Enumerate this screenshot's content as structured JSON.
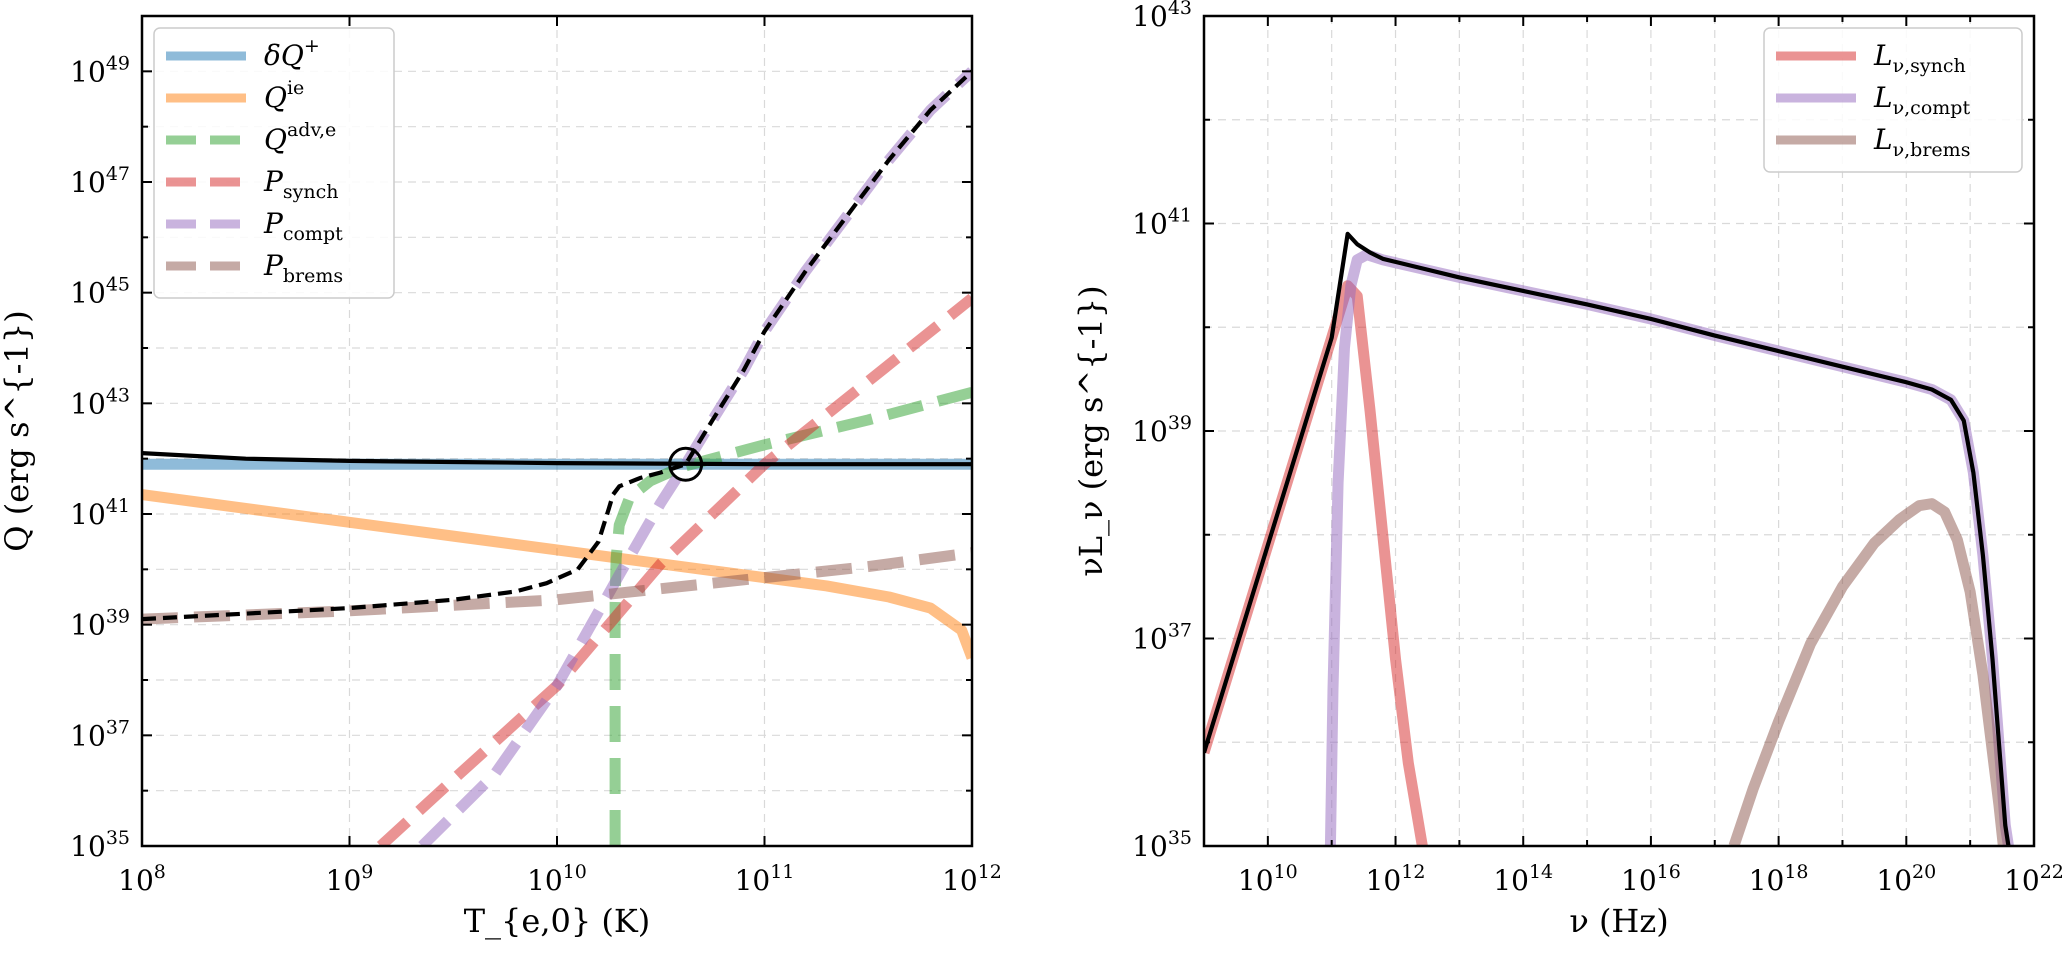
{
  "chart_data": [
    {
      "type": "line",
      "xscale": "log",
      "yscale": "log",
      "xlim": [
        100000000.0,
        1000000000000.0
      ],
      "ylim": [
        1e+35,
        1e+50
      ],
      "xlabel": "T_{e,0} (K)",
      "ylabel": "Q (erg s^{-1})",
      "legend_position": "top-left",
      "xticks": [
        {
          "exp": "8"
        },
        {
          "exp": "9"
        },
        {
          "exp": "10"
        },
        {
          "exp": "11"
        },
        {
          "exp": "12"
        }
      ],
      "yticks": [
        {
          "exp": "35"
        },
        {
          "exp": "37"
        },
        {
          "exp": "39"
        },
        {
          "exp": "41"
        },
        {
          "exp": "43"
        },
        {
          "exp": "45"
        },
        {
          "exp": "47"
        },
        {
          "exp": "49"
        }
      ],
      "series": [
        {
          "name": "δQ+",
          "legend_main": "δQ",
          "legend_sup": "+",
          "legend_sub": "",
          "color": "#1f77b4",
          "style": "solid",
          "x": [
            8,
            9,
            10,
            11,
            12
          ],
          "y": [
            41.9,
            41.9,
            41.9,
            41.9,
            41.9
          ]
        },
        {
          "name": "Q^ie",
          "legend_main": "Q",
          "legend_sup": "ie",
          "legend_sub": "",
          "color": "#ff7f0e",
          "style": "solid",
          "x": [
            8,
            8.5,
            9,
            9.5,
            10,
            10.5,
            11,
            11.3,
            11.6,
            11.8,
            11.95,
            12
          ],
          "y": [
            41.35,
            41.1,
            40.85,
            40.6,
            40.35,
            40.1,
            39.85,
            39.7,
            39.5,
            39.3,
            38.9,
            38.4
          ]
        },
        {
          "name": "Q^adv,e",
          "legend_main": "Q",
          "legend_sup": "adv,e",
          "legend_sub": "",
          "color": "#2ca02c",
          "style": "dashed",
          "x": [
            10.28,
            10.28,
            10.285,
            10.3,
            10.35,
            10.45,
            10.6,
            10.8,
            11,
            11.5,
            12
          ],
          "y": [
            35,
            39.4,
            40.2,
            40.8,
            41.3,
            41.6,
            41.85,
            42.05,
            42.25,
            42.7,
            43.2
          ]
        },
        {
          "name": "P_synch",
          "legend_main": "P",
          "legend_sup": "",
          "legend_sub": "synch",
          "color": "#d62728",
          "style": "dashed",
          "x": [
            9.15,
            9.5,
            10,
            10.5,
            11,
            11.5,
            12
          ],
          "y": [
            35,
            36.2,
            37.9,
            40.1,
            41.9,
            43.4,
            44.9
          ]
        },
        {
          "name": "P_compt",
          "legend_main": "P",
          "legend_sup": "",
          "legend_sub": "compt",
          "color": "#9467bd",
          "style": "dashed",
          "x": [
            9.35,
            9.7,
            10,
            10.3,
            10.5,
            10.62,
            10.75,
            10.9,
            11,
            11.2,
            11.4,
            11.6,
            11.8,
            12
          ],
          "y": [
            35,
            36.3,
            37.9,
            39.9,
            41.2,
            41.9,
            42.7,
            43.6,
            44.3,
            45.4,
            46.4,
            47.4,
            48.3,
            49.0
          ]
        },
        {
          "name": "P_brems",
          "legend_main": "P",
          "legend_sup": "",
          "legend_sub": "brems",
          "color": "#8c564b",
          "style": "dashed",
          "x": [
            8,
            9,
            10,
            10.5,
            11,
            11.5,
            12
          ],
          "y": [
            39.1,
            39.25,
            39.45,
            39.65,
            39.85,
            40.05,
            40.3
          ]
        },
        {
          "name": "total",
          "legend_main": "",
          "legend_sup": "",
          "legend_sub": "",
          "color": "#000000",
          "style": "dashed",
          "x": [
            8,
            9,
            9.5,
            9.8,
            9.95,
            10.1,
            10.2,
            10.25,
            10.27,
            10.3,
            10.4,
            10.5,
            10.62,
            10.75,
            10.9,
            11,
            11.2,
            11.4,
            11.6,
            11.8,
            12
          ],
          "y": [
            39.1,
            39.3,
            39.45,
            39.6,
            39.75,
            40.0,
            40.5,
            41.1,
            41.35,
            41.5,
            41.65,
            41.75,
            41.9,
            42.7,
            43.6,
            44.3,
            45.4,
            46.4,
            47.4,
            48.3,
            49.0
          ]
        },
        {
          "name": "net",
          "legend_main": "",
          "legend_sup": "",
          "legend_sub": "",
          "color": "#000000",
          "style": "solid",
          "x": [
            8,
            8.5,
            9,
            9.5,
            10,
            11,
            12
          ],
          "y": [
            42.1,
            42.0,
            41.96,
            41.94,
            41.92,
            41.9,
            41.9
          ]
        }
      ],
      "marker": {
        "type": "open-circle",
        "x": 10.62,
        "y": 41.9
      }
    },
    {
      "type": "line",
      "xscale": "log",
      "yscale": "log",
      "xlim": [
        1000000000.0,
        1e+22
      ],
      "ylim": [
        1e+35,
        1e+43
      ],
      "xlabel": "ν (Hz)",
      "ylabel": "νL_ν (erg s^{-1})",
      "legend_position": "top-right",
      "xticks": [
        {
          "exp": "10"
        },
        {
          "exp": "12"
        },
        {
          "exp": "14"
        },
        {
          "exp": "16"
        },
        {
          "exp": "18"
        },
        {
          "exp": "20"
        },
        {
          "exp": "22"
        }
      ],
      "yticks": [
        {
          "exp": "35"
        },
        {
          "exp": "37"
        },
        {
          "exp": "39"
        },
        {
          "exp": "41"
        },
        {
          "exp": "43"
        }
      ],
      "series": [
        {
          "name": "L_ν,synch",
          "legend_main": "L",
          "legend_sup": "",
          "legend_sub": "ν,synch",
          "color": "#d62728",
          "style": "solid",
          "x": [
            9,
            10,
            11,
            11.25,
            11.4,
            11.6,
            11.8,
            12,
            12.2,
            12.42
          ],
          "y": [
            35.9,
            37.9,
            39.9,
            40.4,
            40.3,
            39.2,
            38.0,
            36.8,
            35.8,
            35
          ]
        },
        {
          "name": "L_ν,compt",
          "legend_main": "L",
          "legend_sup": "",
          "legend_sub": "ν,compt",
          "color": "#9467bd",
          "style": "solid",
          "x": [
            10.98,
            11.02,
            11.1,
            11.2,
            11.3,
            11.4,
            11.55,
            11.8,
            13,
            14,
            15,
            16,
            17,
            18,
            19,
            20,
            20.4,
            20.7,
            20.9,
            21.05,
            21.2,
            21.35,
            21.45,
            21.55,
            21.6
          ],
          "y": [
            35,
            36.5,
            38.5,
            39.8,
            40.4,
            40.65,
            40.7,
            40.65,
            40.48,
            40.35,
            40.22,
            40.08,
            39.92,
            39.77,
            39.62,
            39.47,
            39.4,
            39.3,
            39.1,
            38.6,
            37.8,
            36.8,
            36.0,
            35.2,
            35
          ]
        },
        {
          "name": "L_ν,brems",
          "legend_main": "L",
          "legend_sup": "",
          "legend_sub": "ν,brems",
          "color": "#8c564b",
          "style": "solid",
          "x": [
            17.3,
            17.6,
            18,
            18.5,
            19,
            19.5,
            19.9,
            20.2,
            20.4,
            20.6,
            20.8,
            21,
            21.2,
            21.35,
            21.45,
            21.52
          ],
          "y": [
            35,
            35.55,
            36.2,
            36.95,
            37.5,
            37.92,
            38.15,
            38.28,
            38.3,
            38.22,
            37.95,
            37.45,
            36.65,
            35.9,
            35.4,
            35
          ]
        },
        {
          "name": "total",
          "legend_main": "",
          "legend_sup": "",
          "legend_sub": "",
          "color": "#000000",
          "style": "solid",
          "x": [
            9,
            10,
            11,
            11.25,
            11.4,
            11.6,
            11.8,
            13,
            14,
            15,
            16,
            17,
            18,
            19,
            20,
            20.4,
            20.7,
            20.9,
            21.05,
            21.2,
            21.35,
            21.45,
            21.55,
            21.6
          ],
          "y": [
            35.9,
            37.9,
            39.9,
            40.9,
            40.8,
            40.72,
            40.66,
            40.48,
            40.35,
            40.22,
            40.08,
            39.92,
            39.77,
            39.62,
            39.47,
            39.4,
            39.3,
            39.1,
            38.6,
            37.8,
            36.8,
            36.0,
            35.2,
            35
          ]
        }
      ]
    }
  ]
}
